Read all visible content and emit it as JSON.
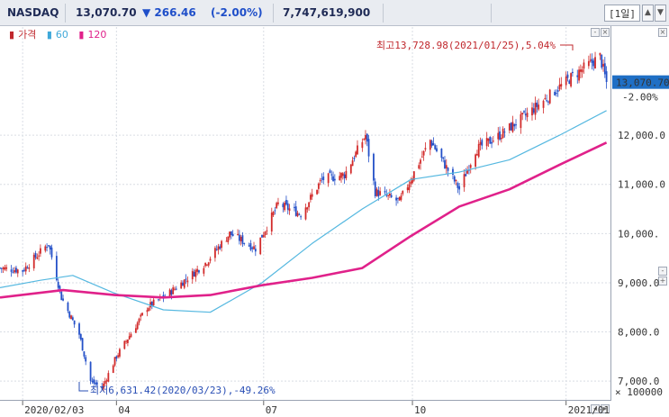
{
  "header": {
    "symbol": "NASDAQ",
    "price": "13,070.70",
    "change": "▼ 266.46",
    "change_pct": "(-2.00%)",
    "volume": "7,747,619,900",
    "period": "[1일]"
  },
  "legend": [
    {
      "label": "가격",
      "color": "#c0282d"
    },
    {
      "label": "60",
      "color": "#3fa8d9"
    },
    {
      "label": "120",
      "color": "#e0218a"
    }
  ],
  "price_tag": {
    "value": "13,070.70",
    "pct": "-2.00%",
    "bg": "#1f6fc5"
  },
  "annotations": {
    "high": "최고13,728.98(2021/01/25),5.04%",
    "low": "최저6,631.42(2020/03/23),-49.26%"
  },
  "chart_data": {
    "type": "candlestick",
    "title": "",
    "y_unit": "× 100000",
    "ylim": [
      6600,
      14200
    ],
    "y_ticks": [
      7000,
      8000,
      9000,
      10000,
      11000,
      12000
    ],
    "y_tick_labels": [
      "7,000.0",
      "8,000.0",
      "9,000.0",
      "10,000.",
      "11,000.0",
      "12,000.0"
    ],
    "x_ticks": [
      {
        "label": "2020/02/03",
        "date": "2020-02-03"
      },
      {
        "label": "04",
        "date": "2020-04-01"
      },
      {
        "label": "07",
        "date": "2020-07-01"
      },
      {
        "label": "10",
        "date": "2020-10-01"
      },
      {
        "label": "2021/01",
        "date": "2021-01-04"
      }
    ],
    "x_range": [
      "2020-01-20",
      "2021-02-01"
    ],
    "close_path": [
      [
        "2020-01-20",
        9300
      ],
      [
        "2020-02-03",
        9250
      ],
      [
        "2020-02-19",
        9800
      ],
      [
        "2020-02-27",
        8700
      ],
      [
        "2020-03-09",
        7950
      ],
      [
        "2020-03-16",
        7000
      ],
      [
        "2020-03-23",
        6860
      ],
      [
        "2020-04-01",
        7500
      ],
      [
        "2020-04-20",
        8500
      ],
      [
        "2020-05-04",
        8800
      ],
      [
        "2020-05-26",
        9400
      ],
      [
        "2020-06-10",
        10000
      ],
      [
        "2020-06-26",
        9700
      ],
      [
        "2020-07-10",
        10600
      ],
      [
        "2020-07-24",
        10400
      ],
      [
        "2020-08-06",
        11100
      ],
      [
        "2020-08-20",
        11200
      ],
      [
        "2020-09-02",
        12000
      ],
      [
        "2020-09-08",
        10850
      ],
      [
        "2020-09-23",
        10650
      ],
      [
        "2020-10-12",
        11900
      ],
      [
        "2020-10-30",
        10900
      ],
      [
        "2020-11-09",
        11700
      ],
      [
        "2020-11-24",
        12000
      ],
      [
        "2020-12-10",
        12400
      ],
      [
        "2020-12-28",
        12900
      ],
      [
        "2021-01-08",
        13200
      ],
      [
        "2021-01-25",
        13600
      ],
      [
        "2021-01-29",
        13070
      ]
    ],
    "series": [
      {
        "name": "60",
        "values": [
          [
            "2020-01-20",
            8900
          ],
          [
            "2020-02-14",
            9050
          ],
          [
            "2020-03-05",
            9150
          ],
          [
            "2020-03-30",
            8800
          ],
          [
            "2020-04-30",
            8450
          ],
          [
            "2020-05-29",
            8400
          ],
          [
            "2020-06-30",
            9000
          ],
          [
            "2020-07-31",
            9800
          ],
          [
            "2020-08-31",
            10500
          ],
          [
            "2020-09-30",
            11100
          ],
          [
            "2020-10-30",
            11250
          ],
          [
            "2020-11-30",
            11500
          ],
          [
            "2020-12-31",
            12000
          ],
          [
            "2021-01-29",
            12500
          ]
        ]
      },
      {
        "name": "120",
        "values": [
          [
            "2020-01-20",
            8700
          ],
          [
            "2020-02-28",
            8850
          ],
          [
            "2020-03-31",
            8750
          ],
          [
            "2020-04-30",
            8700
          ],
          [
            "2020-05-29",
            8750
          ],
          [
            "2020-06-30",
            8950
          ],
          [
            "2020-07-31",
            9100
          ],
          [
            "2020-08-31",
            9300
          ],
          [
            "2020-09-30",
            9950
          ],
          [
            "2020-10-30",
            10550
          ],
          [
            "2020-11-30",
            10900
          ],
          [
            "2020-12-31",
            11400
          ],
          [
            "2021-01-29",
            11850
          ]
        ]
      }
    ]
  }
}
